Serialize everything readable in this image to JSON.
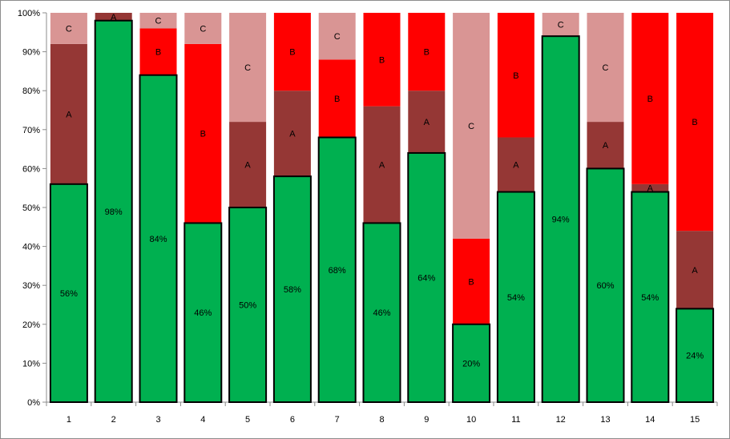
{
  "chart_data": {
    "type": "bar",
    "stacked": true,
    "categories": [
      "1",
      "2",
      "3",
      "4",
      "5",
      "6",
      "7",
      "8",
      "9",
      "10",
      "11",
      "12",
      "13",
      "14",
      "15"
    ],
    "series": [
      {
        "label": "",
        "color": "#00b050",
        "values": [
          56,
          98,
          84,
          46,
          50,
          58,
          68,
          46,
          64,
          20,
          54,
          94,
          60,
          54,
          24
        ],
        "show_value_labels": true
      },
      {
        "label": "A",
        "color": "#953735",
        "values": [
          36,
          2,
          0,
          0,
          22,
          22,
          0,
          30,
          16,
          0,
          14,
          0,
          12,
          2,
          20
        ]
      },
      {
        "label": "B",
        "color": "#ff0000",
        "values": [
          0,
          0,
          12,
          46,
          0,
          20,
          20,
          24,
          20,
          22,
          32,
          0,
          0,
          44,
          56
        ]
      },
      {
        "label": "C",
        "color": "#d99594",
        "values": [
          8,
          0,
          4,
          8,
          28,
          0,
          12,
          0,
          0,
          58,
          0,
          6,
          28,
          0,
          0
        ]
      }
    ],
    "ylim": [
      0,
      100
    ],
    "y_ticks": [
      "0%",
      "10%",
      "20%",
      "30%",
      "40%",
      "50%",
      "60%",
      "70%",
      "80%",
      "90%",
      "100%"
    ],
    "y_tick_values": [
      0,
      10,
      20,
      30,
      40,
      50,
      60,
      70,
      80,
      90,
      100
    ],
    "value_suffix": "%",
    "grid": false,
    "legend": "none",
    "title": "",
    "xlabel": "",
    "ylabel": ""
  }
}
